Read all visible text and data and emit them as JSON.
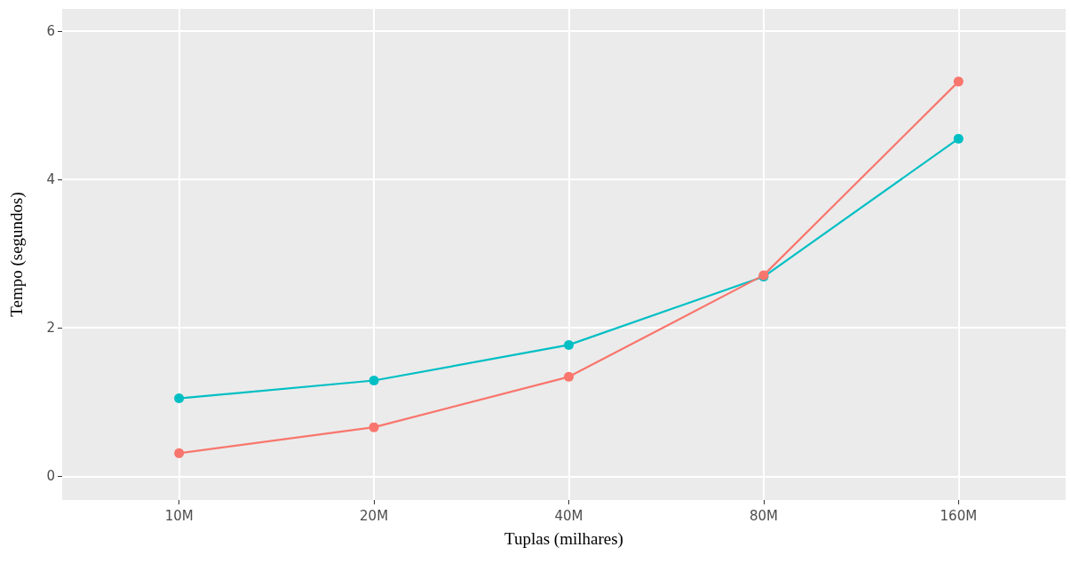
{
  "chart_data": {
    "type": "line",
    "xlabel": "Tuplas (milhares)",
    "ylabel": "Tempo (segundos)",
    "categories": [
      "10M",
      "20M",
      "40M",
      "80M",
      "160M"
    ],
    "series": [
      {
        "color": "#f8766d",
        "values": [
          0.31,
          0.66,
          1.34,
          2.71,
          5.32
        ]
      },
      {
        "color": "#00bfc4",
        "values": [
          1.05,
          1.29,
          1.77,
          2.69,
          4.55
        ]
      }
    ],
    "ylim": [
      -0.32,
      6.3
    ],
    "yticks": [
      0,
      2,
      4,
      6
    ],
    "grid": true,
    "marker": "circle",
    "line_style": "solid"
  }
}
